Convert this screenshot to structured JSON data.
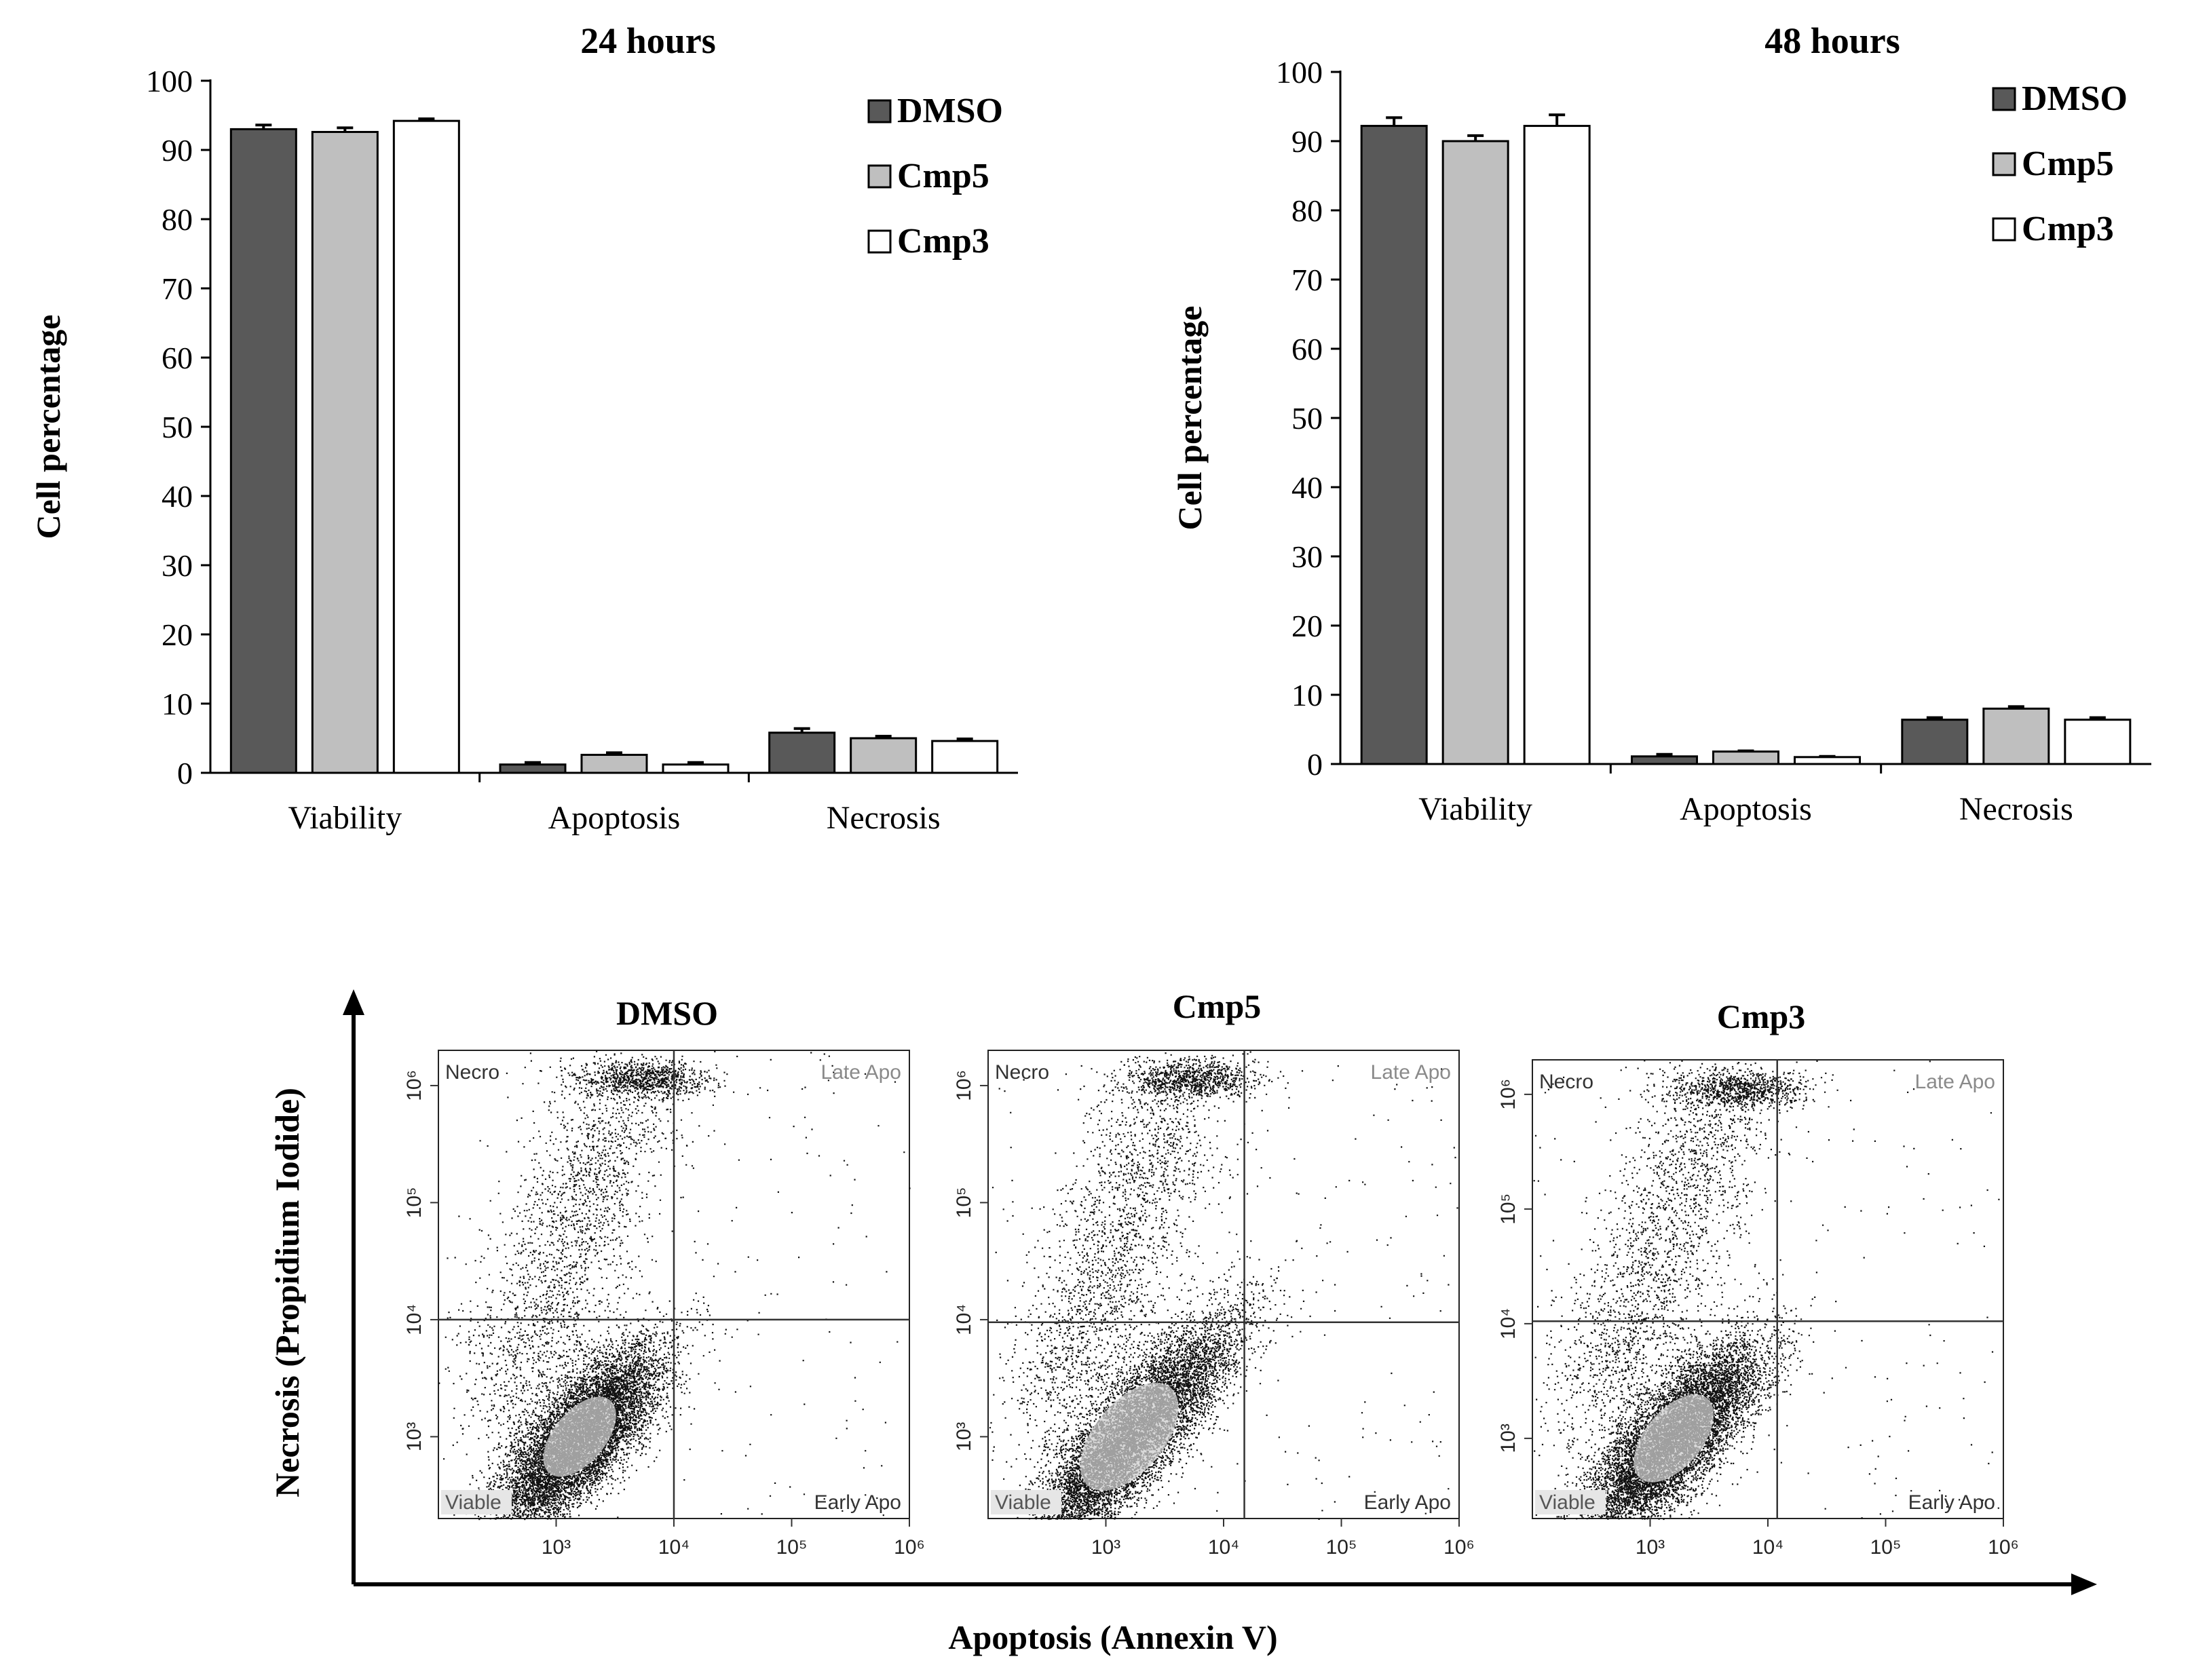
{
  "chart_data": [
    {
      "type": "bar",
      "title": "24 hours",
      "ylabel": "Cell percentage",
      "xlabel": "",
      "ylim": [
        0,
        100
      ],
      "yticks": [
        0,
        10,
        20,
        30,
        40,
        50,
        60,
        70,
        80,
        90,
        100
      ],
      "categories": [
        "Viability",
        "Apoptosis",
        "Necrosis"
      ],
      "legend_position": "top-right",
      "grid": false,
      "series": [
        {
          "name": "DMSO",
          "color": "#595959",
          "values": [
            93.0,
            1.2,
            5.8
          ],
          "errors": [
            0.6,
            0.3,
            0.6
          ]
        },
        {
          "name": "Cmp5",
          "color": "#bfbfbf",
          "values": [
            92.6,
            2.6,
            5.0
          ],
          "errors": [
            0.6,
            0.3,
            0.3
          ]
        },
        {
          "name": "Cmp3",
          "color": "#ffffff",
          "values": [
            94.2,
            1.2,
            4.6
          ],
          "errors": [
            0.3,
            0.3,
            0.3
          ]
        }
      ]
    },
    {
      "type": "bar",
      "title": "48 hours",
      "ylabel": "Cell percentage",
      "xlabel": "",
      "ylim": [
        0,
        100
      ],
      "yticks": [
        0,
        10,
        20,
        30,
        40,
        50,
        60,
        70,
        80,
        90,
        100
      ],
      "categories": [
        "Viability",
        "Apoptosis",
        "Necrosis"
      ],
      "legend_position": "top-right",
      "grid": false,
      "series": [
        {
          "name": "DMSO",
          "color": "#595959",
          "values": [
            92.2,
            1.1,
            6.4
          ],
          "errors": [
            1.2,
            0.3,
            0.3
          ]
        },
        {
          "name": "Cmp5",
          "color": "#bfbfbf",
          "values": [
            90.0,
            1.8,
            8.0
          ],
          "errors": [
            0.8,
            0.1,
            0.3
          ]
        },
        {
          "name": "Cmp3",
          "color": "#ffffff",
          "values": [
            92.2,
            1.0,
            6.4
          ],
          "errors": [
            1.6,
            0.1,
            0.3
          ]
        }
      ]
    },
    {
      "type": "scatter",
      "xlabel": "Apoptosis (Annexin V)",
      "ylabel": "Necrosis (Propidium Iodide)",
      "scale": "log",
      "xlim": [
        100,
        1000000
      ],
      "ylim": [
        200,
        2000000
      ],
      "xticks": [
        "10³",
        "10⁴",
        "10⁵",
        "10⁶"
      ],
      "yticks": [
        "10³",
        "10⁴",
        "10⁵",
        "10⁶"
      ],
      "quadrants": [
        "Necro",
        "Late Apo",
        "Viable",
        "Early Apo"
      ],
      "panels": [
        {
          "title": "DMSO",
          "gate_x": 10000,
          "gate_y": 10000
        },
        {
          "title": "Cmp5",
          "gate_x": 15000,
          "gate_y": 9500
        },
        {
          "title": "Cmp3",
          "gate_x": 12000,
          "gate_y": 10500
        }
      ]
    }
  ]
}
